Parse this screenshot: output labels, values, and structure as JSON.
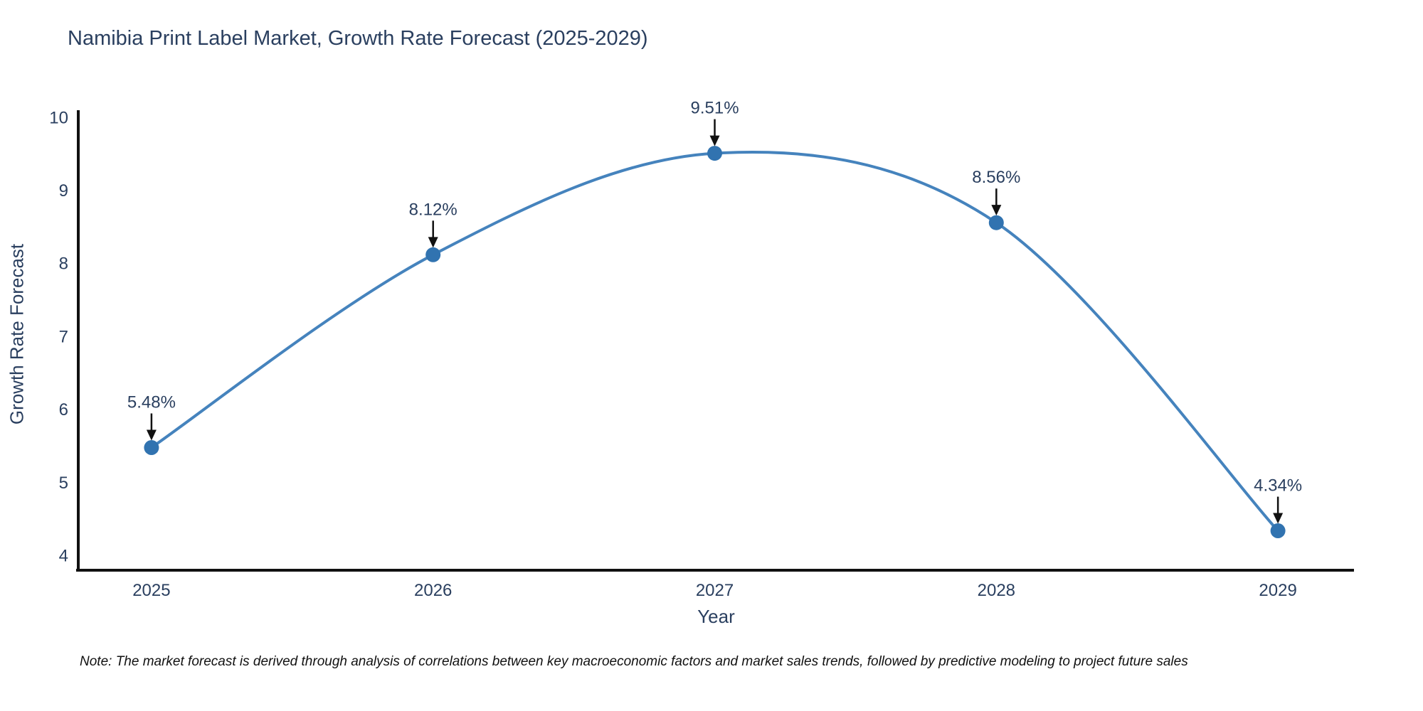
{
  "chart_data": {
    "type": "line",
    "title": "Namibia Print Label Market, Growth Rate Forecast (2025-2029)",
    "xlabel": "Year",
    "ylabel": "Growth Rate Forecast",
    "x": [
      2025,
      2026,
      2027,
      2028,
      2029
    ],
    "series": [
      {
        "name": "Growth Rate Forecast",
        "values": [
          5.48,
          8.12,
          9.51,
          8.56,
          4.34
        ]
      }
    ],
    "data_labels": [
      "5.48%",
      "8.12%",
      "9.51%",
      "8.56%",
      "4.34%"
    ],
    "yticks": [
      4,
      5,
      6,
      7,
      8,
      9,
      10
    ],
    "xlim": [
      2024.74,
      2029.27
    ],
    "ylim": [
      3.8,
      10.1
    ],
    "grid": false,
    "legend_position": "none",
    "curve": "spline",
    "annotation_style": "arrow-down-to-point",
    "colors": {
      "line": "#4583bd",
      "marker": "#3173b0",
      "axis": "#111111",
      "text": "#2a3f5f",
      "annotation_arrow": "#111111",
      "background": "#ffffff"
    }
  },
  "footnote": "Note: The market forecast is derived through analysis of correlations between key macroeconomic factors and market sales trends, followed by predictive modeling to project future sales"
}
